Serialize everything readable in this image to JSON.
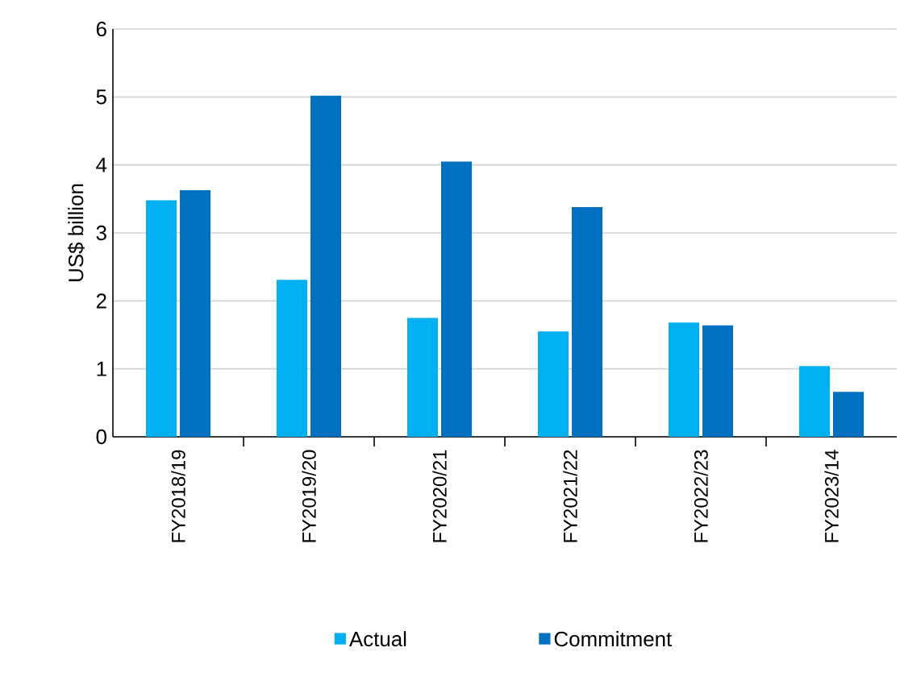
{
  "chart_data": {
    "type": "bar",
    "ylabel": "US$ billion",
    "categories": [
      "FY2018/19",
      "FY2019/20",
      "FY2020/21",
      "FY2021/22",
      "FY2022/23",
      "FY2023/14"
    ],
    "series": [
      {
        "name": "Actual",
        "color": "#00b0f0",
        "values": [
          3.48,
          2.31,
          1.75,
          1.55,
          1.68,
          1.04
        ]
      },
      {
        "name": "Commitment",
        "color": "#0070c0",
        "values": [
          3.63,
          5.02,
          4.05,
          3.38,
          1.64,
          0.66
        ]
      }
    ],
    "ylim": [
      0,
      6
    ],
    "yticks": [
      0,
      1,
      2,
      3,
      4,
      5,
      6
    ],
    "grid": "y",
    "legend": "bottom"
  }
}
